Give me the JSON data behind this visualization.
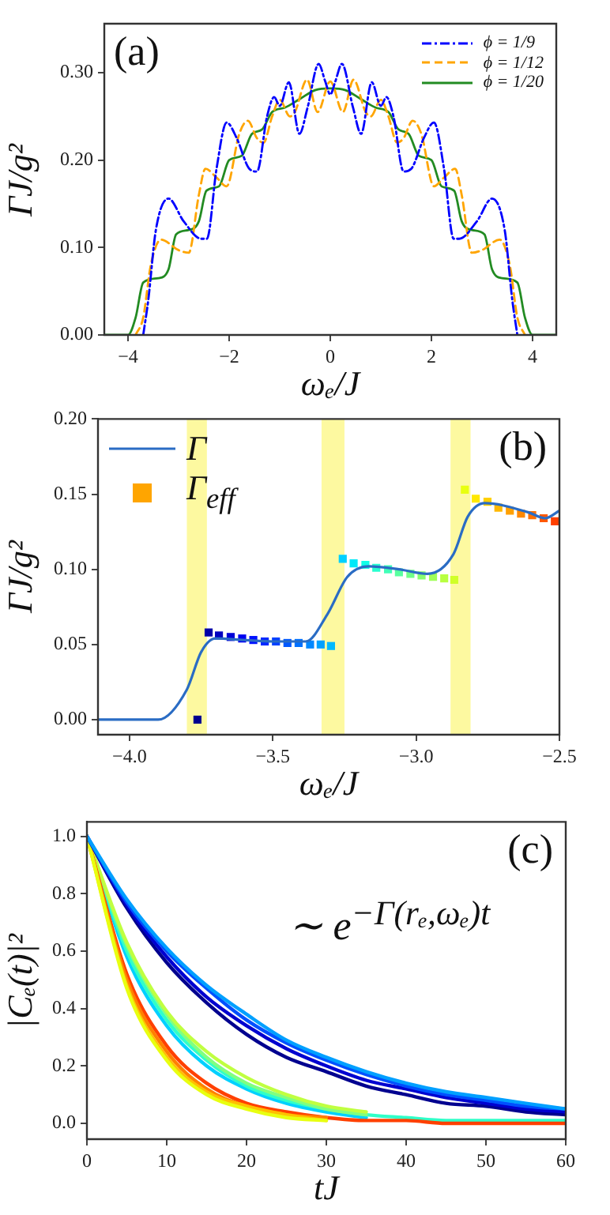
{
  "chart_data": [
    {
      "type": "line",
      "title": "(a)",
      "xlabel": "ωₑ/J",
      "ylabel": "ΓJ/g²",
      "xlim": [
        -4.47,
        4.47
      ],
      "ylim": [
        0,
        0.356
      ],
      "xticks": [
        {
          "value": -4,
          "label": "−4"
        },
        {
          "value": -2,
          "label": "−2"
        },
        0,
        2,
        4
      ],
      "yticks": [
        {
          "value": 0,
          "label": "0.00"
        },
        {
          "value": 0.1,
          "label": "0.10"
        },
        {
          "value": 0.2,
          "label": "0.20"
        },
        {
          "value": 0.3,
          "label": "0.30"
        }
      ],
      "legend": "top right",
      "series": [
        {
          "name": "ϕ = 1/9",
          "color": "#0000ff",
          "line_style": "dashdot",
          "x": [
            -3.7,
            -3.6,
            -3.45,
            -3.2,
            -2.9,
            -2.55,
            -2.44,
            -2.25,
            -2.05,
            -1.85,
            -1.6,
            -1.45,
            -1.25,
            -1.11,
            -1.0,
            -0.82,
            -0.61,
            -0.45,
            -0.23,
            -0.1,
            0,
            0.1,
            0.23,
            0.45,
            0.61,
            0.82,
            1.0,
            1.11,
            1.25,
            1.45,
            1.6,
            1.85,
            2.05,
            2.25,
            2.44,
            2.55,
            2.9,
            3.2,
            3.45,
            3.6,
            3.7
          ],
          "values": [
            0,
            0.04,
            0.12,
            0.156,
            0.13,
            0.11,
            0.11,
            0.19,
            0.243,
            0.225,
            0.19,
            0.187,
            0.25,
            0.272,
            0.262,
            0.289,
            0.23,
            0.26,
            0.31,
            0.29,
            0.275,
            0.29,
            0.31,
            0.26,
            0.23,
            0.289,
            0.262,
            0.272,
            0.25,
            0.187,
            0.19,
            0.225,
            0.243,
            0.19,
            0.11,
            0.11,
            0.13,
            0.156,
            0.12,
            0.04,
            0
          ]
        },
        {
          "name": "ϕ = 1/12",
          "color": "#ffa500",
          "line_style": "dashed",
          "x": [
            -3.85,
            -3.7,
            -3.55,
            -3.35,
            -3.0,
            -2.8,
            -2.6,
            -2.47,
            -2.25,
            -2.05,
            -1.8,
            -1.63,
            -1.45,
            -1.32,
            -1.15,
            -1.0,
            -0.8,
            -0.7,
            -0.46,
            -0.25,
            0,
            0.25,
            0.46,
            0.7,
            0.8,
            1.0,
            1.15,
            1.32,
            1.45,
            1.63,
            1.8,
            2.05,
            2.25,
            2.47,
            2.6,
            2.8,
            3.0,
            3.35,
            3.55,
            3.7,
            3.85
          ],
          "values": [
            0,
            0.02,
            0.08,
            0.109,
            0.097,
            0.094,
            0.16,
            0.19,
            0.18,
            0.17,
            0.23,
            0.245,
            0.225,
            0.22,
            0.25,
            0.269,
            0.25,
            0.255,
            0.292,
            0.255,
            0.29,
            0.255,
            0.292,
            0.255,
            0.25,
            0.269,
            0.25,
            0.22,
            0.225,
            0.245,
            0.23,
            0.17,
            0.18,
            0.19,
            0.16,
            0.094,
            0.097,
            0.109,
            0.08,
            0.02,
            0
          ]
        },
        {
          "name": "ϕ = 1/20",
          "color": "#228b22",
          "line_style": "solid",
          "x": [
            -4.47,
            -4.0,
            -3.85,
            -3.7,
            -3.4,
            -3.2,
            -3.05,
            -2.8,
            -2.6,
            -2.45,
            -2.2,
            -2.0,
            -1.75,
            -1.55,
            -1.35,
            -1.15,
            -0.9,
            -0.6,
            -0.3,
            0,
            0.3,
            0.6,
            0.9,
            1.15,
            1.35,
            1.55,
            1.75,
            2.0,
            2.2,
            2.45,
            2.6,
            2.8,
            3.05,
            3.2,
            3.4,
            3.7,
            3.85,
            4.0,
            4.47
          ],
          "values": [
            0,
            0,
            0.02,
            0.06,
            0.065,
            0.075,
            0.115,
            0.12,
            0.13,
            0.165,
            0.17,
            0.2,
            0.205,
            0.23,
            0.235,
            0.255,
            0.26,
            0.27,
            0.28,
            0.282,
            0.28,
            0.27,
            0.26,
            0.255,
            0.235,
            0.23,
            0.205,
            0.2,
            0.17,
            0.165,
            0.13,
            0.12,
            0.115,
            0.075,
            0.065,
            0.06,
            0.02,
            0,
            0
          ]
        }
      ]
    },
    {
      "type": "line",
      "title": "(b)",
      "xlabel": "ωₑ/J",
      "ylabel": "ΓJ/g²",
      "xlim": [
        -4.11,
        -2.5
      ],
      "ylim": [
        -0.01,
        0.2
      ],
      "xticks": [
        {
          "value": -4,
          "label": "−4.0"
        },
        {
          "value": -3.5,
          "label": "−3.5"
        },
        {
          "value": -3,
          "label": "−3.0"
        },
        {
          "value": -2.5,
          "label": "−2.5"
        }
      ],
      "yticks": [
        {
          "value": 0,
          "label": "0.00"
        },
        {
          "value": 0.05,
          "label": "0.05"
        },
        {
          "value": 0.1,
          "label": "0.10"
        },
        {
          "value": 0.15,
          "label": "0.15"
        },
        {
          "value": 0.2,
          "label": "0.20"
        }
      ],
      "legend": "top left",
      "bands": [
        {
          "axis": "x",
          "from": -3.8,
          "to": -3.73,
          "color": "#fdf9a0"
        },
        {
          "axis": "x",
          "from": -3.33,
          "to": -3.25,
          "color": "#fdf9a0"
        },
        {
          "axis": "x",
          "from": -2.88,
          "to": -2.81,
          "color": "#fdf9a0"
        }
      ],
      "series": [
        {
          "name": "Γ",
          "type": "line",
          "color": "#2a6cc4",
          "x": [
            -4.11,
            -3.9,
            -3.8,
            -3.75,
            -3.7,
            -3.6,
            -3.5,
            -3.385,
            -3.31,
            -3.24,
            -3.165,
            -3.06,
            -2.96,
            -2.87,
            -2.82,
            -2.76,
            -2.61,
            -2.55,
            -2.5
          ],
          "values": [
            0,
            0,
            0.02,
            0.045,
            0.054,
            0.053,
            0.052,
            0.052,
            0.07,
            0.095,
            0.102,
            0.1,
            0.097,
            0.11,
            0.135,
            0.144,
            0.138,
            0.134,
            0.139
          ]
        },
        {
          "name": "Γ$_{eff}$",
          "type": "scatter",
          "marker": "square",
          "color": "#ffa500",
          "x": [
            -3.763,
            -3.724,
            -3.688,
            -3.647,
            -3.607,
            -3.568,
            -3.528,
            -3.489,
            -3.449,
            -3.41,
            -3.37,
            -3.333,
            -3.297,
            -3.256,
            -3.218,
            -3.177,
            -3.139,
            -3.098,
            -3.06,
            -3.02,
            -2.981,
            -2.941,
            -2.902,
            -2.867,
            -2.83,
            -2.792,
            -2.751,
            -2.713,
            -2.673,
            -2.634,
            -2.595,
            -2.555,
            -2.516
          ],
          "values": [
            0,
            0.058,
            0.056,
            0.055,
            0.054,
            0.053,
            0.052,
            0.052,
            0.051,
            0.051,
            0.05,
            0.05,
            0.049,
            0.107,
            0.104,
            0.103,
            0.101,
            0.1,
            0.098,
            0.097,
            0.096,
            0.095,
            0.094,
            0.093,
            0.153,
            0.147,
            0.145,
            0.141,
            0.139,
            0.137,
            0.136,
            0.134,
            0.132
          ],
          "colors": [
            "#00008f",
            "#0000a8",
            "#0000c0",
            "#0000d8",
            "#0000f0",
            "#0010ff",
            "#0028ff",
            "#0040ff",
            "#0058ff",
            "#0070ff",
            "#0088ff",
            "#00a0ff",
            "#00b8ff",
            "#00d0ff",
            "#00e8f8",
            "#10ffe8",
            "#28ffd0",
            "#40ffb8",
            "#58ffa0",
            "#70ff88",
            "#88ff70",
            "#a0ff58",
            "#b8ff40",
            "#d0ff28",
            "#e8ff10",
            "#ffe800",
            "#ffd000",
            "#ffb800",
            "#ffa000",
            "#ff8800",
            "#ff7000",
            "#ff5800",
            "#ff4000"
          ]
        }
      ]
    },
    {
      "type": "line",
      "title": "(c)",
      "xlabel": "tJ",
      "ylabel": "|Cₑ(t)|²",
      "annotations": [
        "∼ e$^{−Γ(rₑ,ωₑ)t}$"
      ],
      "xlim": [
        0,
        60
      ],
      "ylim": [
        -0.055,
        1.05
      ],
      "xticks": [
        0,
        10,
        20,
        30,
        40,
        50,
        60
      ],
      "yticks": [
        {
          "value": 0,
          "label": "0.0"
        },
        {
          "value": 0.2,
          "label": "0.2"
        },
        {
          "value": 0.4,
          "label": "0.4"
        },
        {
          "value": 0.6,
          "label": "0.6"
        },
        {
          "value": 0.8,
          "label": "0.8"
        },
        {
          "value": 1,
          "label": "1.0"
        }
      ],
      "x": [
        0,
        5,
        10,
        15,
        20,
        25,
        30,
        35,
        40,
        45,
        50,
        55,
        60
      ],
      "series": [
        {
          "color": "#00a0ff",
          "values": [
            1,
            0.78,
            0.61,
            0.48,
            0.38,
            0.29,
            0.23,
            0.18,
            0.14,
            0.11,
            0.09,
            0.07,
            0.05
          ]
        },
        {
          "color": "#0050ff",
          "values": [
            1,
            0.77,
            0.6,
            0.47,
            0.36,
            0.28,
            0.22,
            0.17,
            0.13,
            0.1,
            0.08,
            0.06,
            0.05
          ]
        },
        {
          "color": "#0000d0",
          "values": [
            1,
            0.76,
            0.58,
            0.44,
            0.34,
            0.26,
            0.2,
            0.15,
            0.12,
            0.09,
            0.07,
            0.05,
            0.04
          ]
        },
        {
          "color": "#00008f",
          "values": [
            1,
            0.75,
            0.56,
            0.42,
            0.31,
            0.23,
            0.18,
            0.13,
            0.1,
            0.07,
            0.06,
            0.04,
            0.03
          ]
        },
        {
          "color": "#e8ff10",
          "values": [
            1,
            0.47,
            0.22,
            0.1,
            0.05,
            0.02,
            0.01,
            null,
            null,
            null,
            null,
            null,
            null
          ]
        },
        {
          "color": "#ffc000",
          "values": [
            1,
            0.48,
            0.23,
            0.11,
            0.06,
            0.03,
            0.01,
            null,
            null,
            null,
            null,
            null,
            null
          ]
        },
        {
          "color": "#ff8000",
          "values": [
            1,
            0.5,
            0.25,
            0.12,
            0.06,
            0.03,
            0.02,
            null,
            null,
            null,
            null,
            null,
            null
          ]
        },
        {
          "color": "#ff4000",
          "values": [
            1,
            0.52,
            0.27,
            0.14,
            0.07,
            0.04,
            0.02,
            0.01,
            0.01,
            0,
            0,
            0,
            0
          ]
        },
        {
          "color": "#c0ff40",
          "values": [
            1,
            0.63,
            0.39,
            0.25,
            0.16,
            0.1,
            0.06,
            0.04,
            null,
            null,
            null,
            null,
            null
          ]
        },
        {
          "color": "#80ff80",
          "values": [
            1,
            0.62,
            0.38,
            0.23,
            0.14,
            0.09,
            0.05,
            0.03,
            null,
            null,
            null,
            null,
            null
          ]
        },
        {
          "color": "#30ffc8",
          "values": [
            1,
            0.6,
            0.36,
            0.22,
            0.13,
            0.08,
            0.05,
            0.03,
            0.02,
            0.01,
            0.01,
            0.01,
            0.01
          ]
        },
        {
          "color": "#00d0ff",
          "values": [
            1,
            0.58,
            0.34,
            0.2,
            0.12,
            0.07,
            0.04,
            0.02,
            null,
            null,
            null,
            null,
            null
          ]
        }
      ]
    }
  ]
}
